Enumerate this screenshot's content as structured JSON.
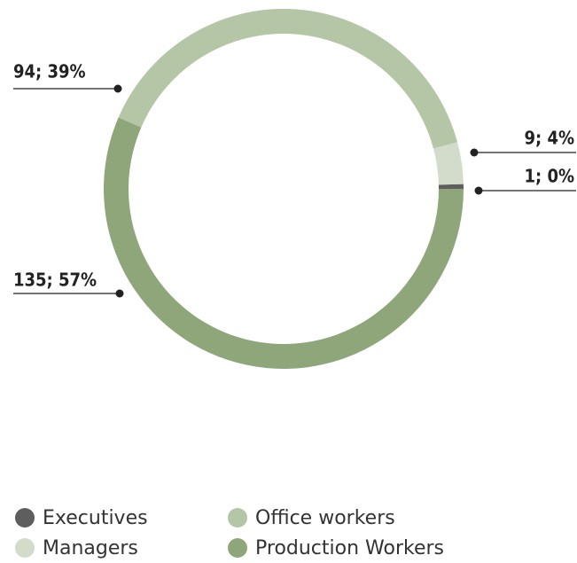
{
  "chart_data": {
    "type": "donut",
    "categories": [
      "Executives",
      "Managers",
      "Office workers",
      "Production Workers"
    ],
    "values": [
      1,
      9,
      94,
      135
    ],
    "value_labels": [
      "1; 0%",
      "9; 4%",
      "94; 39%",
      "135; 57%"
    ],
    "colors": [
      "#5e5e5e",
      "#d3dccb",
      "#b5c6a6",
      "#8fa67a"
    ]
  }
}
